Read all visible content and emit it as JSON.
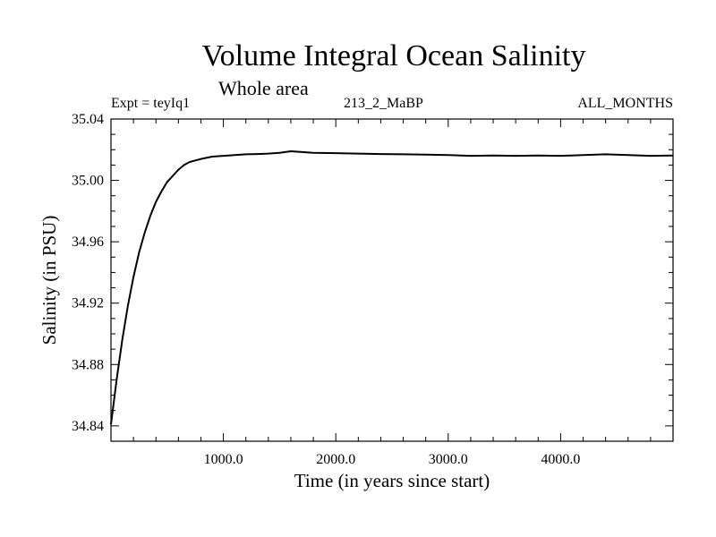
{
  "chart_data": {
    "type": "line",
    "title": "Volume Integral Ocean Salinity",
    "subtitle": "Whole area",
    "annotations": {
      "left": "Expt = teyIq1",
      "center": "213_2_MaBP",
      "right": "ALL_MONTHS"
    },
    "xlabel": "Time (in years since start)",
    "ylabel": "Salinity (in PSU)",
    "xlim": [
      0,
      5000
    ],
    "ylim": [
      34.83,
      35.04
    ],
    "x_ticks": [
      1000,
      2000,
      3000,
      4000
    ],
    "x_tick_labels": [
      "1000.0",
      "2000.0",
      "3000.0",
      "4000.0"
    ],
    "y_ticks": [
      34.84,
      34.88,
      34.92,
      34.96,
      35.0,
      35.04
    ],
    "y_tick_labels": [
      "34.84",
      "34.88",
      "34.92",
      "34.96",
      "35.00",
      "35.04"
    ],
    "grid": false,
    "series": [
      {
        "name": "Salinity",
        "x": [
          0,
          50,
          100,
          150,
          200,
          250,
          300,
          350,
          400,
          450,
          500,
          550,
          600,
          650,
          700,
          750,
          800,
          900,
          1000,
          1100,
          1200,
          1300,
          1400,
          1500,
          1600,
          1700,
          1800,
          2000,
          2200,
          2400,
          2600,
          2800,
          3000,
          3200,
          3400,
          3600,
          3800,
          4000,
          4200,
          4400,
          4600,
          4800,
          5000
        ],
        "y": [
          34.841,
          34.87,
          34.896,
          34.918,
          34.937,
          34.953,
          34.966,
          34.977,
          34.986,
          34.993,
          34.999,
          35.003,
          35.007,
          35.01,
          35.012,
          35.013,
          35.014,
          35.0155,
          35.016,
          35.0165,
          35.017,
          35.0172,
          35.0175,
          35.018,
          35.019,
          35.0185,
          35.018,
          35.0178,
          35.0175,
          35.0172,
          35.017,
          35.0168,
          35.0165,
          35.016,
          35.0162,
          35.016,
          35.0162,
          35.016,
          35.0165,
          35.017,
          35.0165,
          35.016,
          35.0162
        ]
      }
    ]
  }
}
